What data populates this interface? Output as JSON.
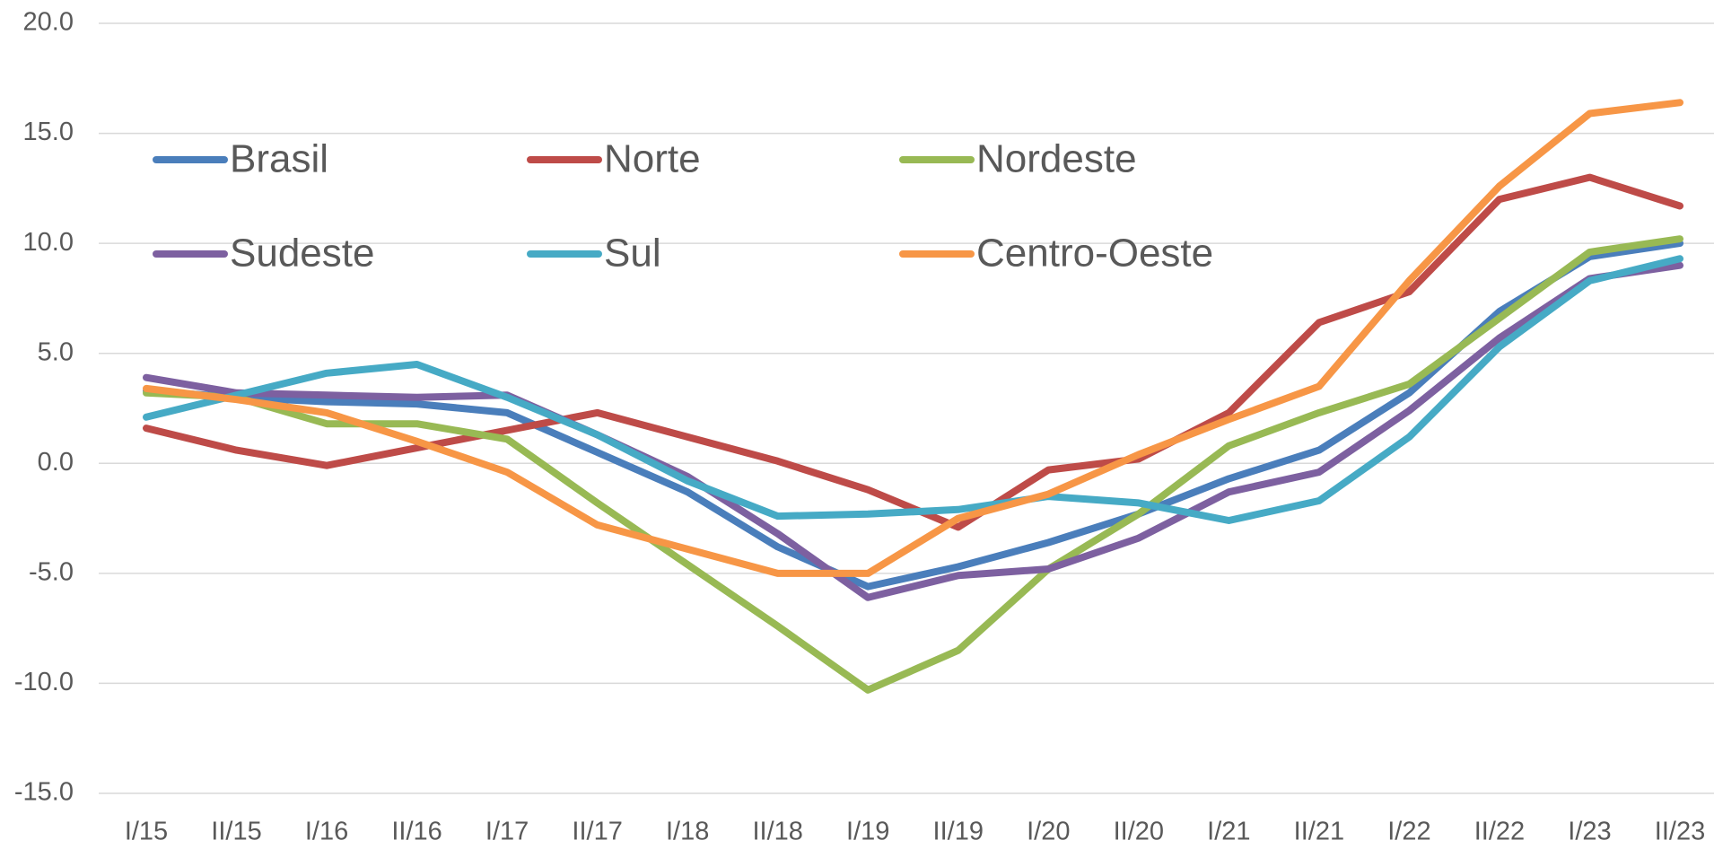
{
  "chart_data": {
    "type": "line",
    "categories": [
      "I/15",
      "II/15",
      "I/16",
      "II/16",
      "I/17",
      "II/17",
      "I/18",
      "II/18",
      "I/19",
      "II/19",
      "I/20",
      "II/20",
      "I/21",
      "II/21",
      "I/22",
      "II/22",
      "I/23",
      "II/23"
    ],
    "series": [
      {
        "name": "Brasil",
        "color": "#4a7ebb",
        "values": [
          3.3,
          3.0,
          2.8,
          2.7,
          2.3,
          0.5,
          -1.3,
          -3.8,
          -5.6,
          -4.7,
          -3.6,
          -2.3,
          -0.7,
          0.6,
          3.2,
          6.9,
          9.4,
          10.0
        ]
      },
      {
        "name": "Norte",
        "color": "#be4b48",
        "values": [
          1.6,
          0.6,
          -0.1,
          0.7,
          1.5,
          2.3,
          1.2,
          0.1,
          -1.2,
          -2.9,
          -0.3,
          0.2,
          2.3,
          6.4,
          7.8,
          12.0,
          13.0,
          11.7
        ]
      },
      {
        "name": "Nordeste",
        "color": "#98b954",
        "values": [
          3.2,
          3.0,
          1.8,
          1.8,
          1.1,
          -1.8,
          -4.6,
          -7.4,
          -10.3,
          -8.5,
          -4.8,
          -2.3,
          0.8,
          2.3,
          3.6,
          6.6,
          9.6,
          10.2
        ]
      },
      {
        "name": "Sudeste",
        "color": "#7d60a0",
        "values": [
          3.9,
          3.2,
          3.1,
          3.0,
          3.1,
          1.3,
          -0.6,
          -3.2,
          -6.1,
          -5.1,
          -4.8,
          -3.4,
          -1.3,
          -0.4,
          2.4,
          5.7,
          8.4,
          9.0
        ]
      },
      {
        "name": "Sul",
        "color": "#46aac5",
        "values": [
          2.1,
          3.1,
          4.1,
          4.5,
          3.0,
          1.3,
          -0.8,
          -2.4,
          -2.3,
          -2.1,
          -1.5,
          -1.8,
          -2.6,
          -1.7,
          1.2,
          5.3,
          8.3,
          9.3
        ]
      },
      {
        "name": "Centro-Oeste",
        "color": "#f79646",
        "values": [
          3.4,
          2.9,
          2.3,
          1.0,
          -0.4,
          -2.8,
          -3.9,
          -5.0,
          -5.0,
          -2.5,
          -1.4,
          0.4,
          2.0,
          3.5,
          8.3,
          12.6,
          15.9,
          16.4
        ]
      }
    ],
    "ylim": [
      -15,
      20
    ],
    "yticks": [
      {
        "value": -15,
        "label": "-15.0"
      },
      {
        "value": -10,
        "label": "-10.0"
      },
      {
        "value": -5,
        "label": "-5.0"
      },
      {
        "value": 0,
        "label": "0.0"
      },
      {
        "value": 5,
        "label": "5.0"
      },
      {
        "value": 10,
        "label": "10.0"
      },
      {
        "value": 15,
        "label": "15.0"
      },
      {
        "value": 20,
        "label": "20.0"
      }
    ],
    "grid": true,
    "legend": "top-left"
  }
}
